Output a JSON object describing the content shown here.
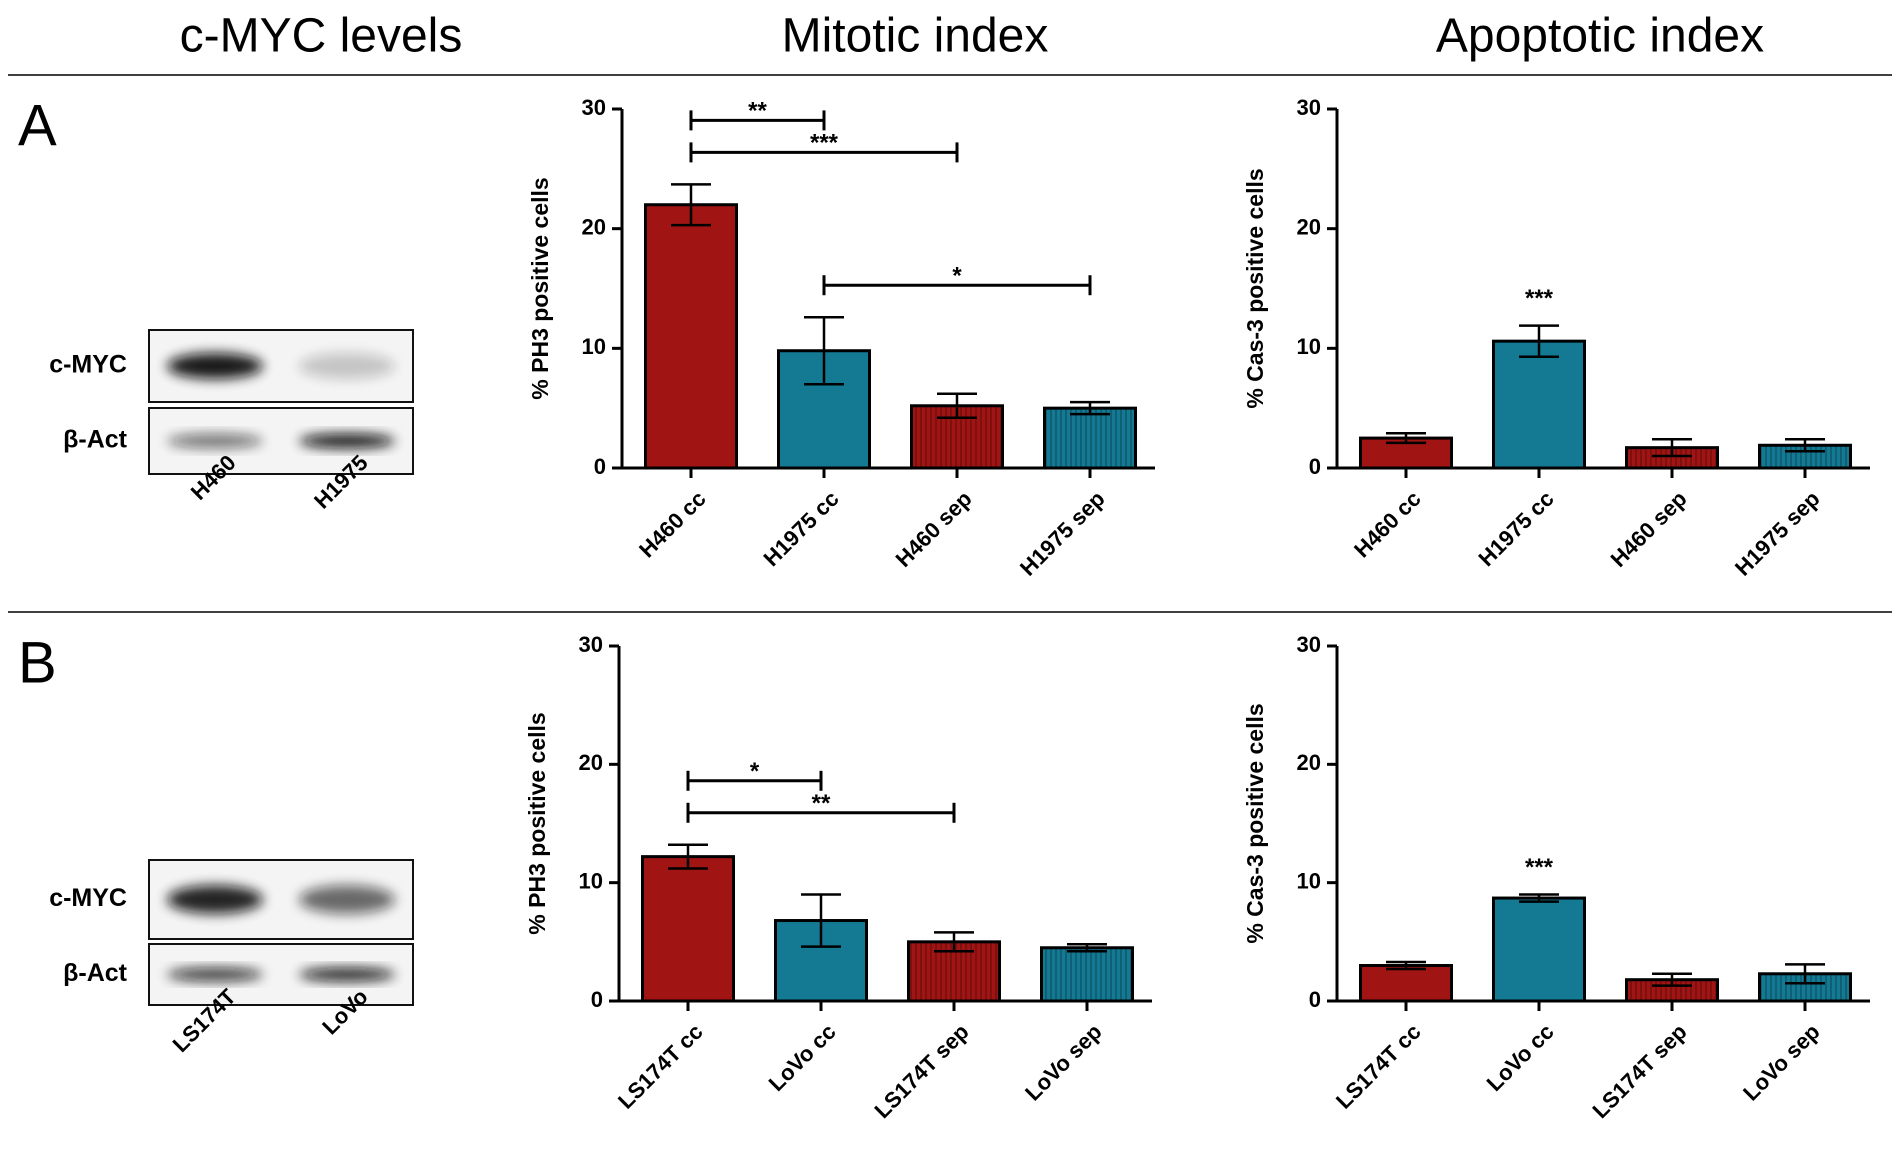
{
  "headers": [
    "c-MYC levels",
    "Mitotic index",
    "Apoptotic index"
  ],
  "panels": [
    "A",
    "B"
  ],
  "blots": [
    {
      "rows": [
        "c-MYC",
        "β-Act"
      ],
      "lanes": [
        "H460",
        "H1975"
      ]
    },
    {
      "rows": [
        "c-MYC",
        "β-Act"
      ],
      "lanes": [
        "LS174T",
        "LoVo"
      ]
    }
  ],
  "chart_data": [
    {
      "type": "bar",
      "ylabel": "% PH3 positive cells",
      "categories": [
        "H460 cc",
        "H1975 cc",
        "H460 sep",
        "H1975 sep"
      ],
      "values": [
        22.0,
        9.8,
        5.2,
        5.0
      ],
      "errors": [
        1.7,
        2.8,
        1.0,
        0.5
      ],
      "colors": [
        "#a01414",
        "#147a94",
        "#a01414",
        "#147a94"
      ],
      "hatch": [
        false,
        false,
        true,
        true
      ],
      "ylim": [
        0,
        30
      ],
      "yticks": [
        0,
        10,
        20,
        30
      ],
      "annotations": [
        {
          "label": "**",
          "from": 0,
          "to": 1
        },
        {
          "label": "***",
          "from": 0,
          "to": 2
        },
        {
          "label": "*",
          "from": 1,
          "to": 3
        }
      ]
    },
    {
      "type": "bar",
      "ylabel": "% Cas-3 positive cells",
      "categories": [
        "H460 cc",
        "H1975 cc",
        "H460 sep",
        "H1975 sep"
      ],
      "values": [
        2.5,
        10.6,
        1.7,
        1.9
      ],
      "errors": [
        0.4,
        1.3,
        0.7,
        0.5
      ],
      "colors": [
        "#a01414",
        "#147a94",
        "#a01414",
        "#147a94"
      ],
      "hatch": [
        false,
        false,
        true,
        true
      ],
      "ylim": [
        0,
        30
      ],
      "yticks": [
        0,
        10,
        20,
        30
      ],
      "annotations": [
        {
          "label": "***",
          "from": 1,
          "to": 1
        }
      ]
    },
    {
      "type": "bar",
      "ylabel": "% PH3 positive cells",
      "categories": [
        "LS174T cc",
        "LoVo cc",
        "LS174T sep",
        "LoVo sep"
      ],
      "values": [
        12.2,
        6.8,
        5.0,
        4.5
      ],
      "errors": [
        1.0,
        2.2,
        0.8,
        0.3
      ],
      "colors": [
        "#a01414",
        "#147a94",
        "#a01414",
        "#147a94"
      ],
      "hatch": [
        false,
        false,
        true,
        true
      ],
      "ylim": [
        0,
        30
      ],
      "yticks": [
        0,
        10,
        20,
        30
      ],
      "annotations": [
        {
          "label": "*",
          "from": 0,
          "to": 1
        },
        {
          "label": "**",
          "from": 0,
          "to": 2
        }
      ]
    },
    {
      "type": "bar",
      "ylabel": "% Cas-3 positive cells",
      "categories": [
        "LS174T cc",
        "LoVo cc",
        "LS174T sep",
        "LoVo sep"
      ],
      "values": [
        3.0,
        8.7,
        1.8,
        2.3
      ],
      "errors": [
        0.3,
        0.3,
        0.5,
        0.8
      ],
      "colors": [
        "#a01414",
        "#147a94",
        "#a01414",
        "#147a94"
      ],
      "hatch": [
        false,
        false,
        true,
        true
      ],
      "ylim": [
        0,
        30
      ],
      "yticks": [
        0,
        10,
        20,
        30
      ],
      "annotations": [
        {
          "label": "***",
          "from": 1,
          "to": 1
        }
      ]
    }
  ]
}
